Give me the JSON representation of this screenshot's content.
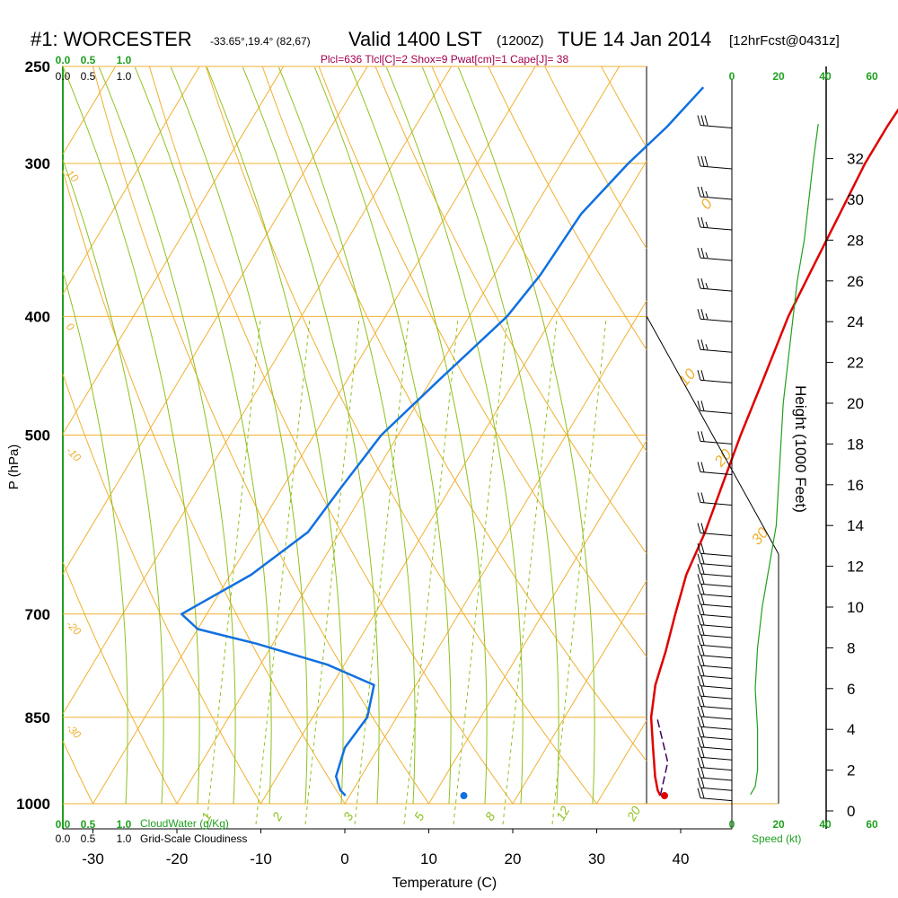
{
  "title": {
    "station": "#1: WORCESTER",
    "coords": "-33.65°,19.4° (82,67)",
    "valid": "Valid 1400 LST",
    "zulu": "(1200Z)",
    "date": "TUE 14 Jan 2014",
    "forecast": "[12hrFcst@0431z]"
  },
  "indices": "Plcl=636 Tlcl[C]=2 Shox=9 Pwat[cm]=1 Cape[J]= 38",
  "colors": {
    "isobar": "#f0b030",
    "isotherm": "#f0b030",
    "dry_adiabat": "#f0b030",
    "moist_adiabat": "#90c020",
    "mixing_ratio": "#90c020",
    "temperature": "#e00000",
    "dewpoint": "#1070e0",
    "parcel": "#400060",
    "scale_green": "#20a020",
    "indices_text": "#a00050"
  },
  "chart_data": {
    "type": "skew-t",
    "xlabel": "Temperature (C)",
    "ylabel": "P (hPa)",
    "right_label": "Height (1000 Feet)",
    "x_ticks": [
      "-30",
      "-20",
      "-10",
      "0",
      "10",
      "20",
      "30",
      "40"
    ],
    "p_ticks": [
      "250",
      "300",
      "400",
      "500",
      "700",
      "850",
      "1000"
    ],
    "height_ticks": [
      "0",
      "2",
      "4",
      "6",
      "8",
      "10",
      "12",
      "14",
      "16",
      "18",
      "20",
      "22",
      "24",
      "26",
      "28",
      "30",
      "32"
    ],
    "xlim": [
      -34,
      36
    ],
    "plim": [
      250,
      1000
    ],
    "isobars": [
      250,
      300,
      400,
      500,
      700,
      850,
      1000
    ],
    "isotherm_labels": [
      {
        "text": "0",
        "t": 0,
        "p": 330
      },
      {
        "text": "10",
        "t": 10,
        "p": 460
      },
      {
        "text": "20",
        "t": 20,
        "p": 535
      },
      {
        "text": "30",
        "t": 30,
        "p": 620
      }
    ],
    "dry_adiabat_labels": [
      {
        "text": "10",
        "p": 300
      },
      {
        "text": "0",
        "p": 400
      },
      {
        "text": "-10",
        "p": 505
      },
      {
        "text": "-20",
        "p": 700
      },
      {
        "text": "-30",
        "p": 850
      }
    ],
    "mixing_ratio_labels": [
      "1",
      "2",
      "3",
      "5",
      "8",
      "12",
      "20"
    ],
    "temperature": [
      {
        "p": 260,
        "t": 16.5
      },
      {
        "p": 280,
        "t": 16.2
      },
      {
        "p": 300,
        "t": 16.2
      },
      {
        "p": 330,
        "t": 16.8
      },
      {
        "p": 370,
        "t": 17.5
      },
      {
        "p": 400,
        "t": 18.0
      },
      {
        "p": 450,
        "t": 19.5
      },
      {
        "p": 500,
        "t": 20.8
      },
      {
        "p": 550,
        "t": 22.2
      },
      {
        "p": 600,
        "t": 23.5
      },
      {
        "p": 650,
        "t": 24.3
      },
      {
        "p": 700,
        "t": 25.8
      },
      {
        "p": 750,
        "t": 27.3
      },
      {
        "p": 800,
        "t": 28.5
      },
      {
        "p": 850,
        "t": 30.3
      },
      {
        "p": 900,
        "t": 32.7
      },
      {
        "p": 950,
        "t": 35.0
      },
      {
        "p": 975,
        "t": 36.3
      },
      {
        "p": 985,
        "t": 37.0
      }
    ],
    "dewpoint": [
      {
        "p": 260,
        "t": -8.5
      },
      {
        "p": 280,
        "t": -10.0
      },
      {
        "p": 300,
        "t": -12.0
      },
      {
        "p": 330,
        "t": -14.0
      },
      {
        "p": 370,
        "t": -14.5
      },
      {
        "p": 400,
        "t": -15.5
      },
      {
        "p": 450,
        "t": -19.0
      },
      {
        "p": 500,
        "t": -22.0
      },
      {
        "p": 550,
        "t": -23.0
      },
      {
        "p": 600,
        "t": -23.8
      },
      {
        "p": 650,
        "t": -27.5
      },
      {
        "p": 700,
        "t": -33.0
      },
      {
        "p": 720,
        "t": -30.0
      },
      {
        "p": 740,
        "t": -22.0
      },
      {
        "p": 770,
        "t": -12.0
      },
      {
        "p": 800,
        "t": -5.0
      },
      {
        "p": 850,
        "t": -3.5
      },
      {
        "p": 900,
        "t": -4.0
      },
      {
        "p": 950,
        "t": -3.0
      },
      {
        "p": 975,
        "t": -1.5
      },
      {
        "p": 985,
        "t": -0.5
      }
    ],
    "parcel": [
      {
        "p": 985,
        "t": 37.0
      },
      {
        "p": 925,
        "t": 35.5
      },
      {
        "p": 850,
        "t": 31.0
      }
    ],
    "surface_points": {
      "temperature": {
        "p": 985,
        "t": 37.5
      },
      "dewpoint": {
        "p": 985,
        "t": 13.6
      }
    },
    "cloud_scale": {
      "labels": [
        "0.0",
        "0.5",
        "1.0"
      ],
      "cloud_water_label": "CloudWater (g/Kg)",
      "cloudiness_label": "Grid-Scale Cloudiness"
    },
    "speed_scale": {
      "ticks": [
        "0",
        "20",
        "40",
        "60"
      ],
      "label": "Speed (kt)"
    },
    "wind_speed_profile": [
      {
        "h": 0.8,
        "s": 8
      },
      {
        "h": 1.2,
        "s": 10
      },
      {
        "h": 2,
        "s": 11
      },
      {
        "h": 4,
        "s": 11
      },
      {
        "h": 6,
        "s": 10
      },
      {
        "h": 8,
        "s": 11
      },
      {
        "h": 10,
        "s": 13
      },
      {
        "h": 12,
        "s": 16
      },
      {
        "h": 14,
        "s": 19
      },
      {
        "h": 16,
        "s": 20
      },
      {
        "h": 18,
        "s": 21
      },
      {
        "h": 20,
        "s": 22
      },
      {
        "h": 22,
        "s": 24
      },
      {
        "h": 24,
        "s": 26
      },
      {
        "h": 26,
        "s": 28
      },
      {
        "h": 28,
        "s": 31
      },
      {
        "h": 30,
        "s": 33
      },
      {
        "h": 32,
        "s": 35
      },
      {
        "h": 33.7,
        "s": 37
      }
    ],
    "wind_barbs_ft": [
      {
        "h": 0.5,
        "kt": 20
      },
      {
        "h": 1,
        "kt": 20
      },
      {
        "h": 1.5,
        "kt": 20
      },
      {
        "h": 2,
        "kt": 20
      },
      {
        "h": 2.5,
        "kt": 20
      },
      {
        "h": 3,
        "kt": 20
      },
      {
        "h": 3.5,
        "kt": 20
      },
      {
        "h": 4,
        "kt": 20
      },
      {
        "h": 4.5,
        "kt": 20
      },
      {
        "h": 5,
        "kt": 20
      },
      {
        "h": 5.5,
        "kt": 20
      },
      {
        "h": 6,
        "kt": 20
      },
      {
        "h": 6.5,
        "kt": 20
      },
      {
        "h": 7,
        "kt": 20
      },
      {
        "h": 7.5,
        "kt": 20
      },
      {
        "h": 8,
        "kt": 20
      },
      {
        "h": 8.5,
        "kt": 20
      },
      {
        "h": 9,
        "kt": 20
      },
      {
        "h": 9.5,
        "kt": 20
      },
      {
        "h": 10,
        "kt": 20
      },
      {
        "h": 10.5,
        "kt": 20
      },
      {
        "h": 11,
        "kt": 20
      },
      {
        "h": 11.5,
        "kt": 20
      },
      {
        "h": 12,
        "kt": 20
      },
      {
        "h": 12.5,
        "kt": 20
      },
      {
        "h": 13.5,
        "kt": 20
      },
      {
        "h": 15,
        "kt": 20
      },
      {
        "h": 16.5,
        "kt": 20
      },
      {
        "h": 18,
        "kt": 20
      },
      {
        "h": 19.5,
        "kt": 20
      },
      {
        "h": 21,
        "kt": 20
      },
      {
        "h": 22.5,
        "kt": 25
      },
      {
        "h": 24,
        "kt": 25
      },
      {
        "h": 25.5,
        "kt": 25
      },
      {
        "h": 27,
        "kt": 25
      },
      {
        "h": 28.5,
        "kt": 25
      },
      {
        "h": 30,
        "kt": 25
      },
      {
        "h": 31.5,
        "kt": 30
      },
      {
        "h": 33.5,
        "kt": 30
      }
    ]
  }
}
